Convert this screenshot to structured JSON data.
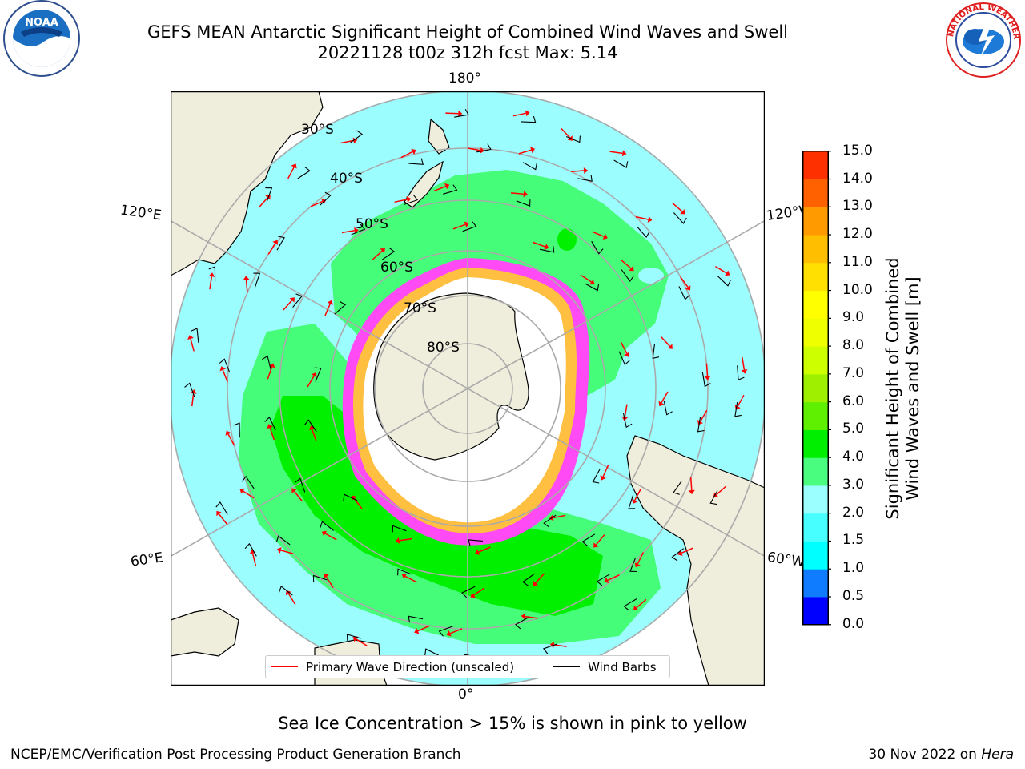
{
  "header": {
    "title_line1": "GEFS MEAN Antarctic Significant Height of Combined Wind Waves and Swell",
    "title_line2": "20221128 t00z 312h fcst   Max: 5.14"
  },
  "logos": {
    "left_text": "NOAA",
    "right_text": "NATIONAL WEATHER SERVICE",
    "left_icon": "noaa-logo",
    "right_icon": "nws-logo"
  },
  "map": {
    "longitude_labels": {
      "top": "180°",
      "bottom": "0°",
      "left_upper": "120°E",
      "left_lower": "60°E",
      "right_upper": "120°W",
      "right_lower": "60°W"
    },
    "latitude_labels": [
      "30°S",
      "40°S",
      "50°S",
      "60°S",
      "70°S",
      "80°S"
    ],
    "colors": {
      "ocean_low": "#9cfdff",
      "ocean_mid": "#46fd7a",
      "ocean_high": "#00f000",
      "land": "#efeddb",
      "ice_pink": "#ff4af5",
      "ice_yellow": "#ffbf40",
      "wave_arrow": "#ff0000",
      "wind_barb": "#000000"
    }
  },
  "legend": {
    "wave_label": "Primary Wave Direction (unscaled)",
    "wind_label": "Wind Barbs"
  },
  "colorbar": {
    "label_line1": "Significant Height of Combined",
    "label_line2": "Wind Waves and Swell [m]",
    "ticks": [
      "0.0",
      "0.5",
      "1.0",
      "1.5",
      "2.0",
      "3.0",
      "4.0",
      "5.0",
      "6.0",
      "7.0",
      "8.0",
      "9.0",
      "10.0",
      "11.0",
      "12.0",
      "13.0",
      "14.0",
      "15.0"
    ],
    "colors": [
      "#0000ff",
      "#0f7cff",
      "#00ffff",
      "#47ffff",
      "#9cffff",
      "#49fe7f",
      "#00ef00",
      "#5ef000",
      "#9ef000",
      "#cdff00",
      "#efff00",
      "#ffff00",
      "#ffe000",
      "#ffbf00",
      "#ff9a00",
      "#ff6000",
      "#ff3000",
      "#ff0000"
    ]
  },
  "subtitle": "Sea Ice Concentration > 15% is shown in pink to yellow",
  "footer": {
    "left": "NCEP/EMC/Verification Post Processing Product Generation Branch",
    "right_date": "30 Nov 2022 on ",
    "right_host": "Hera"
  }
}
